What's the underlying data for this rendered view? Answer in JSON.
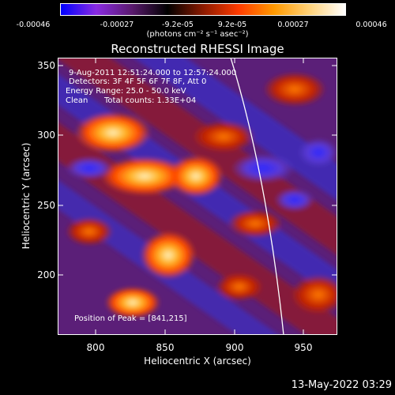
{
  "colorbar": {
    "gradient_colors": [
      "#0000ff",
      "#8a2be2",
      "#5a1a6e",
      "#000000",
      "#8b1a00",
      "#ff3b00",
      "#ff9900",
      "#ffd27a",
      "#ffffff"
    ],
    "ticks": [
      "-0.00046",
      "-0.00027",
      "-9.2e-05",
      "9.2e-05",
      "0.00027",
      "0.00046"
    ],
    "units_text": "(photons cm⁻² s⁻¹ asec⁻²)"
  },
  "title": "Reconstructed RHESSI Image",
  "axes": {
    "x_label": "Heliocentric X (arcsec)",
    "y_label": "Heliocentric Y (arcsec)",
    "x_ticks": [
      "800",
      "850",
      "900",
      "950"
    ],
    "y_ticks": [
      "350",
      "300",
      "250",
      "200"
    ]
  },
  "annotations": {
    "time_range": "9-Aug-2011 12:51:24.000 to 12:57:24.000",
    "detectors": "Detectors: 3F 4F 5F 6F 7F 8F, Att 0",
    "energy": "Energy Range: 25.0 - 50.0 keV",
    "algorithm": "Clean",
    "total_counts": "Total counts: 1.33E+04",
    "peak": "Position of Peak = [841,215]"
  },
  "footer": {
    "date": "13-May-2022 03:29"
  },
  "colors": {
    "background": "#000000",
    "foreground": "#ffffff",
    "limb_line": "#ffffff"
  }
}
